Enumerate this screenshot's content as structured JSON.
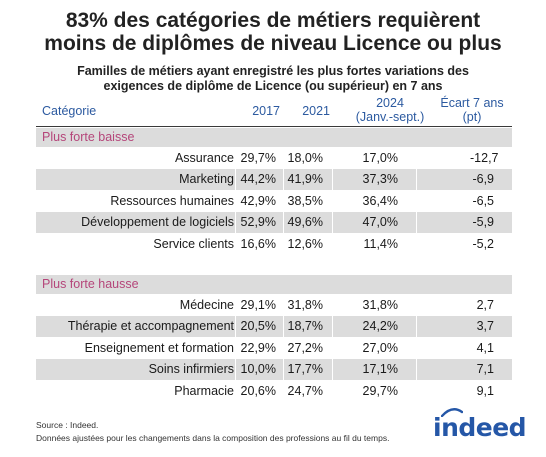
{
  "title_line1": "83% des catégories de métiers requièrent",
  "title_line2": "moins de diplômes de niveau Licence ou plus",
  "subtitle_line1": "Familles de métiers ayant enregistré les plus fortes variations des",
  "subtitle_line2": "exigences de diplôme de Licence (ou supérieur) en 7 ans",
  "chart_data": {
    "type": "table",
    "columns": {
      "category": "Catégorie",
      "y2017": "2017",
      "y2021": "2021",
      "y2024_line1": "2024",
      "y2024_line2": "(Janv.-sept.)",
      "ecart_line1": "Écart 7 ans",
      "ecart_line2": "(pt)"
    },
    "sections": [
      {
        "label": "Plus forte baisse",
        "rows": [
          {
            "name": "Assurance",
            "v2017": "29,7%",
            "v2021": "18,0%",
            "v2024": "17,0%",
            "ecart": "-12,7"
          },
          {
            "name": "Marketing",
            "v2017": "44,2%",
            "v2021": "41,9%",
            "v2024": "37,3%",
            "ecart": "-6,9"
          },
          {
            "name": "Ressources humaines",
            "v2017": "42,9%",
            "v2021": "38,5%",
            "v2024": "36,4%",
            "ecart": "-6,5"
          },
          {
            "name": "Développement de logiciels",
            "v2017": "52,9%",
            "v2021": "49,6%",
            "v2024": "47,0%",
            "ecart": "-5,9"
          },
          {
            "name": "Service clients",
            "v2017": "16,6%",
            "v2021": "12,6%",
            "v2024": "11,4%",
            "ecart": "-5,2"
          }
        ]
      },
      {
        "label": "Plus forte hausse",
        "rows": [
          {
            "name": "Médecine",
            "v2017": "29,1%",
            "v2021": "31,8%",
            "v2024": "31,8%",
            "ecart": "2,7"
          },
          {
            "name": "Thérapie et accompagnement",
            "v2017": "20,5%",
            "v2021": "18,7%",
            "v2024": "24,2%",
            "ecart": "3,7"
          },
          {
            "name": "Enseignement et formation",
            "v2017": "22,9%",
            "v2021": "27,2%",
            "v2024": "27,0%",
            "ecart": "4,1"
          },
          {
            "name": "Soins infirmiers",
            "v2017": "10,0%",
            "v2021": "17,7%",
            "v2024": "17,1%",
            "ecart": "7,1"
          },
          {
            "name": "Pharmacie",
            "v2017": "20,6%",
            "v2021": "24,7%",
            "v2024": "29,7%",
            "ecart": "9,1"
          }
        ]
      }
    ]
  },
  "footer_source": "Source : Indeed.",
  "footer_note": "Données ajustées pour les changements dans la composition des professions au fil du temps.",
  "logo_text": "indeed",
  "colors": {
    "header_blue": "#2c5aa0",
    "section_pink": "#b5467a",
    "band_grey": "#dcdcdc",
    "logo_blue": "#2557a7"
  }
}
